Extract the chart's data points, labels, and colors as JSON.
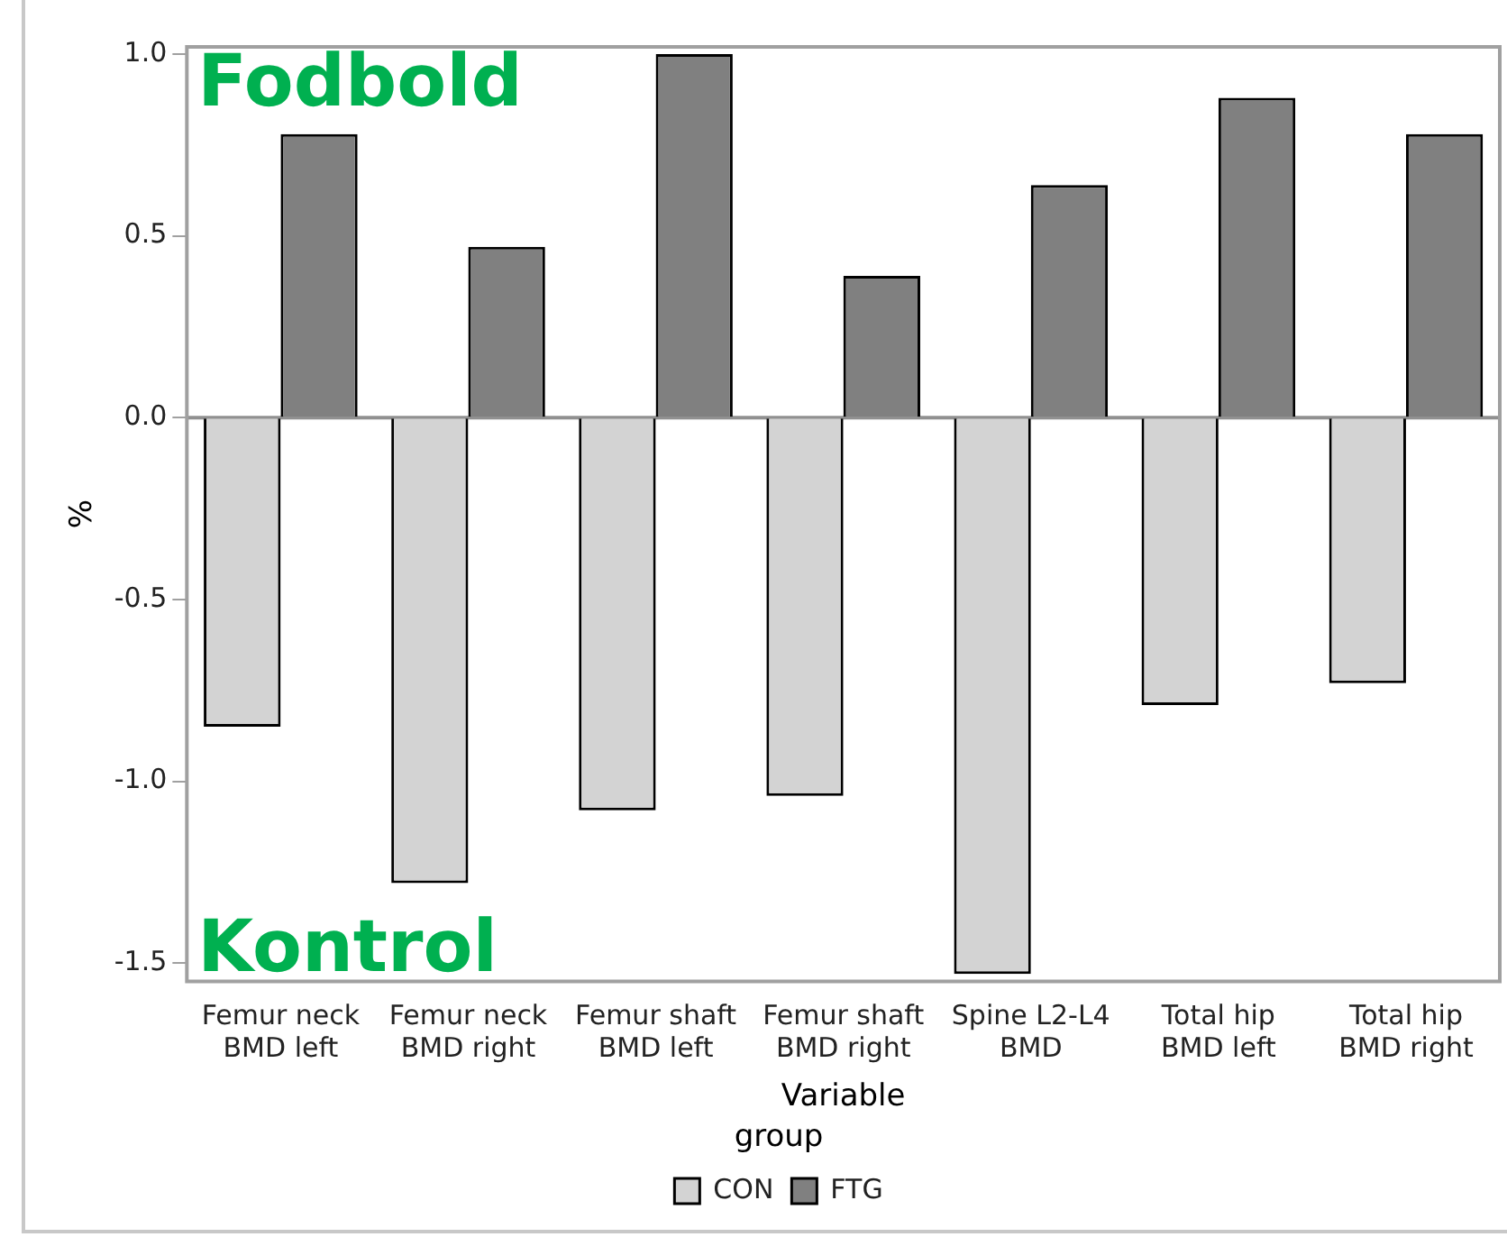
{
  "chart_data": {
    "type": "bar",
    "xlabel": "Variable",
    "ylabel": "%",
    "legend_title": "group",
    "legend": "bottom",
    "grid": false,
    "categories": [
      "Femur neck\nBMD left",
      "Femur neck\nBMD right",
      "Femur shaft\nBMD left",
      "Femur shaft\nBMD right",
      "Spine L2-L4\nBMD",
      "Total hip\nBMD left",
      "Total hip\nBMD right"
    ],
    "series": [
      {
        "name": "CON",
        "color": "#d3d3d3",
        "values": [
          -0.85,
          -1.28,
          -1.08,
          -1.04,
          -1.53,
          -0.79,
          -0.73
        ]
      },
      {
        "name": "FTG",
        "color": "#808080",
        "values": [
          0.78,
          0.47,
          1.0,
          0.39,
          0.64,
          0.88,
          0.78
        ]
      }
    ],
    "ylim": [
      -1.55,
      1.02
    ],
    "yticks": [
      {
        "value": -1.5,
        "label": "-1.5"
      },
      {
        "value": -1,
        "label": "-1.0"
      },
      {
        "value": -0.5,
        "label": "-0.5"
      },
      {
        "value": 0,
        "label": "0.0"
      },
      {
        "value": 0.5,
        "label": "0.5"
      },
      {
        "value": 1,
        "label": "1.0"
      }
    ],
    "ref_lines": [
      {
        "axis": "y",
        "value": 0,
        "color": "#909090"
      }
    ],
    "annotations": [
      "Fodbold",
      "Kontrol"
    ]
  }
}
